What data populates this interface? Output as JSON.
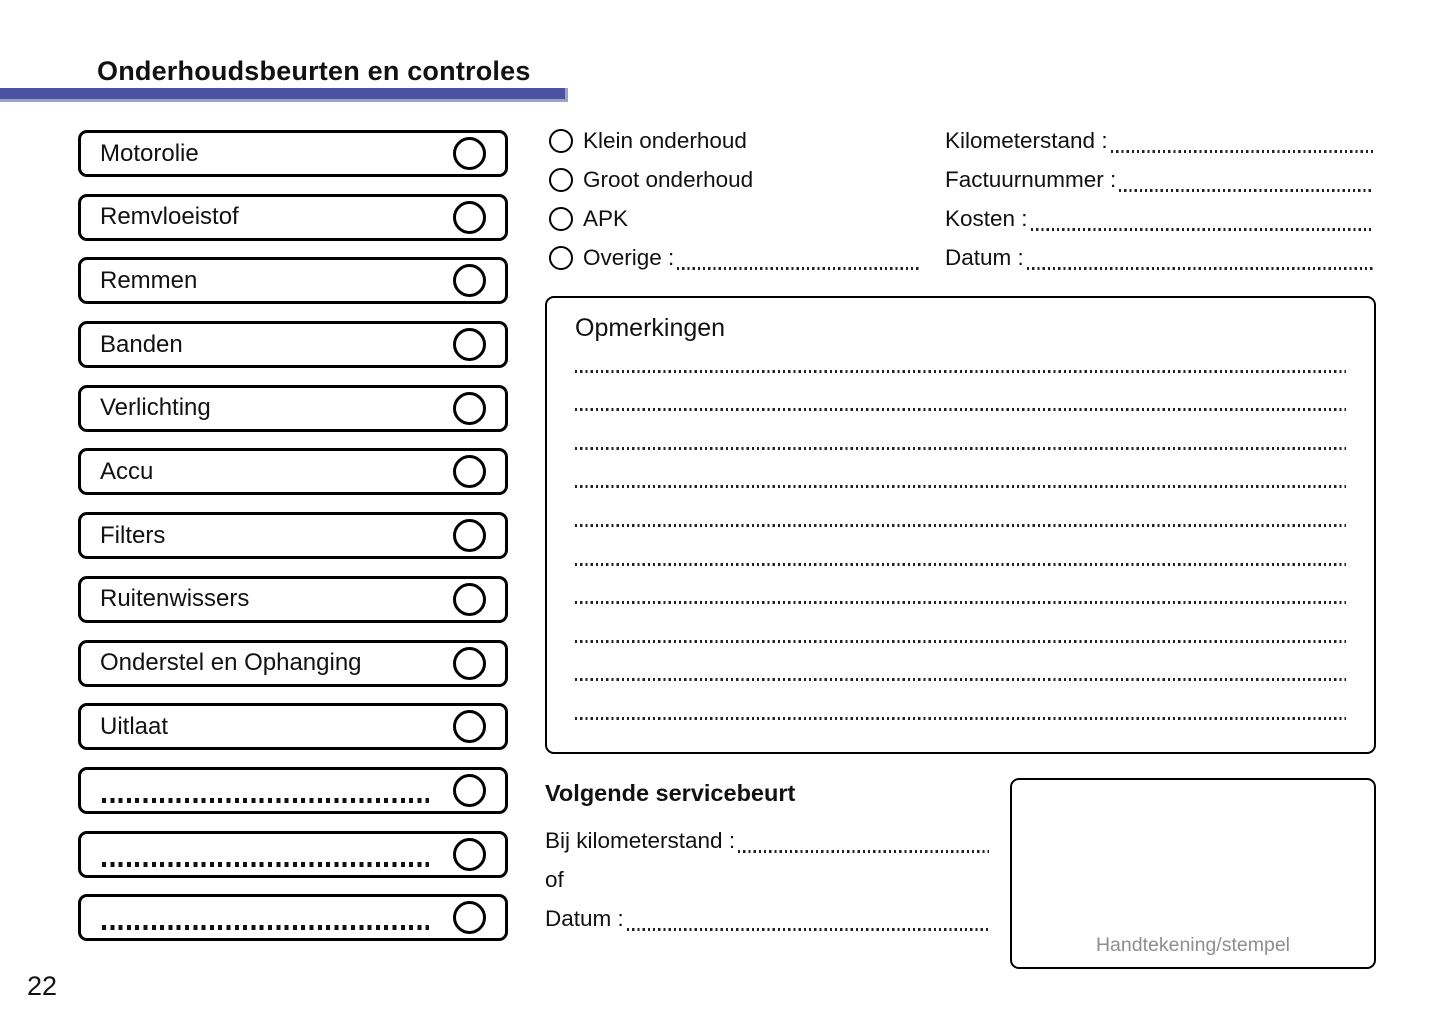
{
  "page": {
    "title": "Onderhoudsbeurten en controles",
    "number": "22"
  },
  "accent_color": "#4a53a2",
  "checklist": {
    "items": [
      {
        "label": "Motorolie"
      },
      {
        "label": "Remvloeistof"
      },
      {
        "label": "Remmen"
      },
      {
        "label": "Banden"
      },
      {
        "label": "Verlichting"
      },
      {
        "label": "Accu"
      },
      {
        "label": "Filters"
      },
      {
        "label": "Ruitenwissers"
      },
      {
        "label": "Onderstel en Ophanging"
      },
      {
        "label": "Uitlaat"
      },
      {
        "label": "",
        "blank": true
      },
      {
        "label": "",
        "blank": true
      },
      {
        "label": "",
        "blank": true
      }
    ]
  },
  "service_types": {
    "items": [
      {
        "label": "Klein onderhoud"
      },
      {
        "label": "Groot onderhoud"
      },
      {
        "label": "APK"
      },
      {
        "label": "Overige :",
        "fill": true
      }
    ]
  },
  "service_fields": {
    "items": [
      {
        "label": "Kilometerstand :",
        "fill": true
      },
      {
        "label": "Factuurnummer :",
        "fill": true
      },
      {
        "label": "Kosten :",
        "fill": true
      },
      {
        "label": "Datum :",
        "fill": true
      }
    ]
  },
  "remarks": {
    "title": "Opmerkingen",
    "line_count": 10
  },
  "next_service": {
    "title": "Volgende servicebeurt",
    "rows": [
      {
        "label": "Bij kilometerstand :",
        "fill": true
      },
      {
        "label": "of"
      },
      {
        "label": "Datum :",
        "fill": true
      }
    ]
  },
  "signature": {
    "label": "Handtekening/stempel"
  }
}
